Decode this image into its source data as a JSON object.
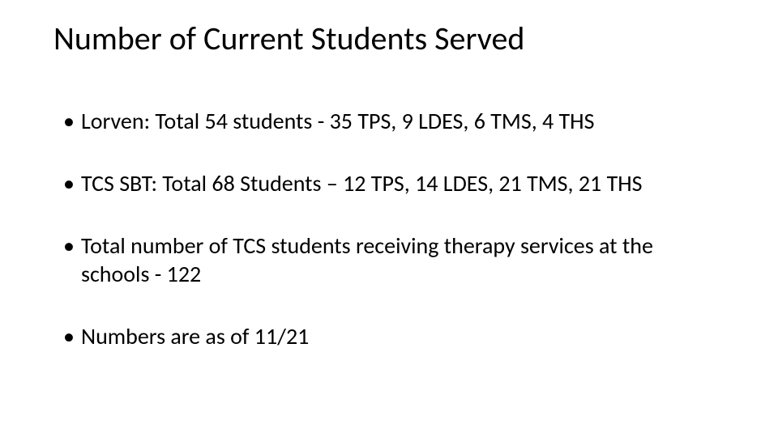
{
  "slide": {
    "title": "Number of Current Students Served",
    "title_fontsize": 40,
    "title_color": "#000000",
    "body_fontsize": 28,
    "body_color": "#000000",
    "background_color": "#ffffff",
    "bullets": [
      "Lorven:  Total 54 students - 35 TPS, 9 LDES, 6 TMS, 4 THS",
      "TCS SBT: Total 68 Students – 12 TPS, 14 LDES, 21 TMS, 21 THS",
      "Total number of TCS students receiving therapy services at the schools - 122",
      "Numbers are as of 11/21"
    ]
  }
}
